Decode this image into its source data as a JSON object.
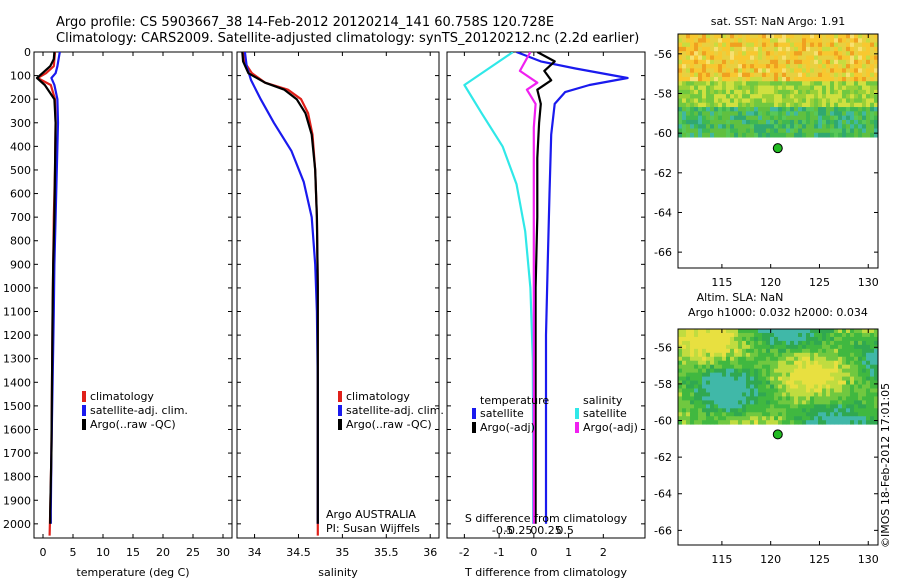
{
  "title_line1": "Argo profile: CS 5903667_38 14-Feb-2012 20120214_141 60.758S 120.728E",
  "title_line2": "Climatology: CARS2009. Satellite-adjusted climatology: synTS_20120212.nc (2.2d earlier)",
  "side_stamp": "©IMOS 18-Feb-2012 17:01:05",
  "colors": {
    "red": "#e0201a",
    "blue": "#1a1aee",
    "black": "#000000",
    "cyan": "#30e8e8",
    "magenta": "#f020f0",
    "dot": "#22bb22"
  },
  "chart_data": [
    {
      "id": "temperature",
      "type": "line",
      "xlabel": "temperature (deg C)",
      "ylabel": "",
      "xlim": [
        -1.5,
        31.5
      ],
      "ylim": [
        2060,
        0
      ],
      "xticks": [
        0,
        5,
        10,
        15,
        20,
        25,
        30
      ],
      "xtick_labels": [
        "0",
        "5",
        "10",
        "15",
        "20",
        "25",
        "30"
      ],
      "yticks": [
        0,
        100,
        200,
        300,
        400,
        500,
        600,
        700,
        800,
        900,
        1000,
        1100,
        1200,
        1300,
        1400,
        1500,
        1600,
        1700,
        1800,
        1900,
        2000
      ],
      "ytick_labels": [
        "0",
        "100",
        "200",
        "300",
        "400",
        "500",
        "600",
        "700",
        "800",
        "900",
        "1000",
        "1100",
        "1200",
        "1300",
        "1400",
        "1500",
        "1600",
        "1700",
        "1800",
        "1900",
        "2000"
      ],
      "series": [
        {
          "name": "climatology",
          "color": "red",
          "x": [
            2.0,
            1.9,
            1.8,
            0.5,
            -0.9,
            1.3,
            2.0,
            2.1,
            2.0,
            1.8,
            1.7,
            1.6,
            1.5,
            1.4,
            1.2,
            1.1
          ],
          "y": [
            0,
            30,
            60,
            90,
            110,
            140,
            200,
            300,
            500,
            700,
            900,
            1100,
            1400,
            1700,
            1950,
            2050
          ]
        },
        {
          "name": "satellite-adj. clim.",
          "color": "blue",
          "x": [
            2.8,
            2.6,
            2.4,
            2.1,
            1.4,
            1.9,
            2.4,
            2.5,
            2.3,
            2.1,
            1.9,
            1.8,
            1.6,
            1.4,
            1.3,
            1.3
          ],
          "y": [
            0,
            30,
            60,
            90,
            110,
            140,
            200,
            300,
            500,
            700,
            900,
            1100,
            1400,
            1700,
            1950,
            2000
          ]
        },
        {
          "name": "Argo(..raw -QC)",
          "color": "black",
          "x": [
            1.9,
            1.8,
            1.2,
            -0.1,
            -1.0,
            0.3,
            1.9,
            2.1,
            2.0,
            1.9,
            1.7,
            1.6,
            1.5,
            1.4,
            1.2,
            1.2
          ],
          "y": [
            0,
            30,
            60,
            90,
            110,
            140,
            200,
            300,
            500,
            700,
            900,
            1100,
            1400,
            1700,
            1950,
            2000
          ]
        }
      ],
      "legend": [
        "climatology",
        "satellite-adj. clim.",
        "Argo(..raw -QC)"
      ]
    },
    {
      "id": "salinity",
      "type": "line",
      "xlabel": "salinity",
      "ylabel": "",
      "xlim": [
        33.8,
        36.1
      ],
      "ylim": [
        2060,
        0
      ],
      "xticks": [
        34,
        34.5,
        35,
        35.5,
        36
      ],
      "xtick_labels": [
        "34",
        "34.5",
        "35",
        "35.5",
        "36"
      ],
      "series": [
        {
          "name": "climatology",
          "color": "red",
          "x": [
            33.87,
            33.88,
            33.97,
            34.12,
            34.38,
            34.53,
            34.61,
            34.66,
            34.69,
            34.71,
            34.72,
            34.72,
            34.72,
            34.72
          ],
          "y": [
            0,
            40,
            90,
            130,
            160,
            200,
            260,
            350,
            500,
            700,
            1000,
            1400,
            1800,
            2050
          ]
        },
        {
          "name": "satellite-adj. clim.",
          "color": "blue",
          "x": [
            33.89,
            33.91,
            33.96,
            34.07,
            34.22,
            34.42,
            34.56,
            34.65,
            34.69,
            34.71,
            34.72,
            34.72,
            34.72
          ],
          "y": [
            0,
            60,
            120,
            200,
            300,
            420,
            550,
            700,
            900,
            1100,
            1400,
            1800,
            2000
          ]
        },
        {
          "name": "Argo(..raw -QC)",
          "color": "black",
          "x": [
            33.86,
            33.87,
            33.93,
            34.12,
            34.34,
            34.48,
            34.58,
            34.65,
            34.69,
            34.71,
            34.72,
            34.72,
            34.72
          ],
          "y": [
            0,
            40,
            90,
            130,
            160,
            200,
            260,
            350,
            500,
            700,
            1000,
            1400,
            2000
          ]
        }
      ],
      "legend": [
        "climatology",
        "satellite-adj. clim.",
        "Argo(..raw -QC)"
      ],
      "annotations": [
        "Argo AUSTRALIA",
        "PI: Susan Wijffels"
      ]
    },
    {
      "id": "differences",
      "type": "line",
      "xlabel": "T difference from climatology",
      "top_label": "S difference from climatology",
      "xlim": [
        -2.5,
        3.2
      ],
      "ylim": [
        2060,
        0
      ],
      "xticks": [
        -2,
        -1,
        0,
        1,
        2
      ],
      "xtick_labels": [
        "-2",
        "-1",
        "0",
        "1",
        "2"
      ],
      "s_ticks": [
        -0.5,
        -0.25,
        0,
        0.25,
        0.5
      ],
      "s_tick_labels": [
        "-0.5",
        "-0.25",
        "0",
        "0.25",
        "0.5"
      ],
      "series": [
        {
          "name": "temperature satellite",
          "color": "blue",
          "x": [
            -0.5,
            0.2,
            1.2,
            2.7,
            1.6,
            0.9,
            0.6,
            0.5,
            0.45,
            0.4,
            0.35,
            0.35,
            0.35,
            0.35
          ],
          "y": [
            0,
            40,
            70,
            110,
            140,
            170,
            220,
            350,
            600,
            900,
            1200,
            1600,
            1900,
            2000
          ]
        },
        {
          "name": "temperature Argo(-adj)",
          "color": "black",
          "x": [
            0.1,
            0.6,
            0.3,
            0.5,
            0.1,
            0.2,
            0.15,
            0.1,
            0.1,
            0.05,
            0.05,
            0.05,
            0.05
          ],
          "y": [
            0,
            40,
            80,
            120,
            160,
            220,
            300,
            450,
            700,
            1000,
            1400,
            1800,
            2000
          ]
        },
        {
          "name": "salinity satellite",
          "color": "cyan",
          "x": [
            -0.6,
            -2.0,
            -1.5,
            -0.9,
            -0.5,
            -0.25,
            -0.1,
            -0.03,
            -0.02,
            -0.02,
            -0.02
          ],
          "y": [
            0,
            140,
            260,
            400,
            560,
            760,
            1000,
            1300,
            1600,
            1800,
            2000
          ]
        },
        {
          "name": "salinity Argo(-adj)",
          "color": "magenta",
          "x": [
            -0.1,
            -0.4,
            0.1,
            -0.2,
            0.05,
            0.0,
            0.0,
            0.0,
            0.0,
            0.0
          ],
          "y": [
            0,
            80,
            130,
            160,
            220,
            320,
            500,
            900,
            1500,
            2000
          ]
        }
      ],
      "legend_headers": [
        "temperature",
        "salinity"
      ],
      "legend": [
        "satellite",
        "Argo(-adj)",
        "satellite",
        "Argo(-adj)"
      ]
    },
    {
      "id": "sst_map",
      "type": "heatmap",
      "title": "sat. SST: NaN Argo: 1.91",
      "xlim": [
        110.5,
        131
      ],
      "ylim": [
        -66.8,
        -55
      ],
      "xticks": [
        115,
        120,
        125,
        130
      ],
      "xtick_labels": [
        "115",
        "120",
        "125",
        "130"
      ],
      "yticks": [
        -56,
        -58,
        -60,
        -62,
        -64,
        -66
      ],
      "ytick_labels": [
        "-56",
        "-58",
        "-60",
        "-62",
        "-64",
        "-66"
      ],
      "data_lat_range": [
        -60.2,
        -55
      ],
      "argo_position": [
        120.728,
        -60.758
      ]
    },
    {
      "id": "sla_map",
      "type": "heatmap",
      "title_line1": "Altim. SLA: NaN",
      "title_line2": "Argo h1000: 0.032 h2000: 0.034",
      "xlim": [
        110.5,
        131
      ],
      "ylim": [
        -66.8,
        -55
      ],
      "xticks": [
        115,
        120,
        125,
        130
      ],
      "xtick_labels": [
        "115",
        "120",
        "125",
        "130"
      ],
      "yticks": [
        -56,
        -58,
        -60,
        -62,
        -64,
        -66
      ],
      "ytick_labels": [
        "-56",
        "-58",
        "-60",
        "-62",
        "-64",
        "-66"
      ],
      "data_lat_range": [
        -60.2,
        -55
      ],
      "argo_position": [
        120.728,
        -60.758
      ]
    }
  ]
}
